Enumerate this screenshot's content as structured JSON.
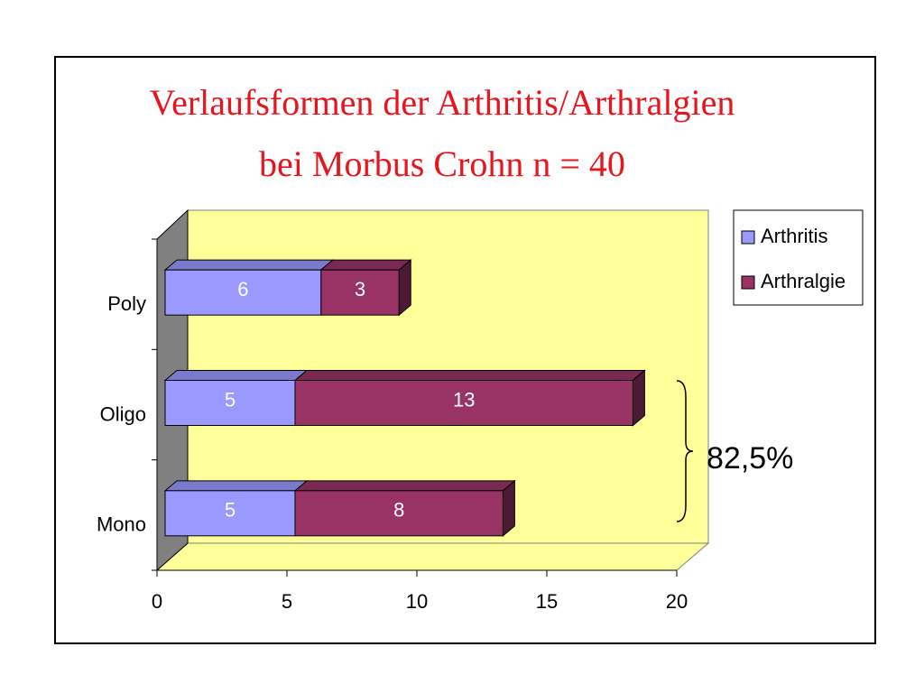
{
  "chart_data": {
    "type": "bar",
    "orientation": "horizontal",
    "stacked": true,
    "title": "Verlaufsformen der Arthritis/Arthralgien",
    "subtitle": "bei Morbus Crohn n = 40",
    "categories": [
      "Mono",
      "Oligo",
      "Poly"
    ],
    "series": [
      {
        "name": "Arthritis",
        "color": "#9999ff",
        "values": [
          5,
          5,
          6
        ]
      },
      {
        "name": "Arthralgie",
        "color": "#993366",
        "values": [
          8,
          13,
          3
        ]
      }
    ],
    "xlim": [
      0,
      20
    ],
    "xticks": [
      0,
      5,
      10,
      15,
      20
    ],
    "annotation": "82,5%",
    "legend": "right"
  }
}
